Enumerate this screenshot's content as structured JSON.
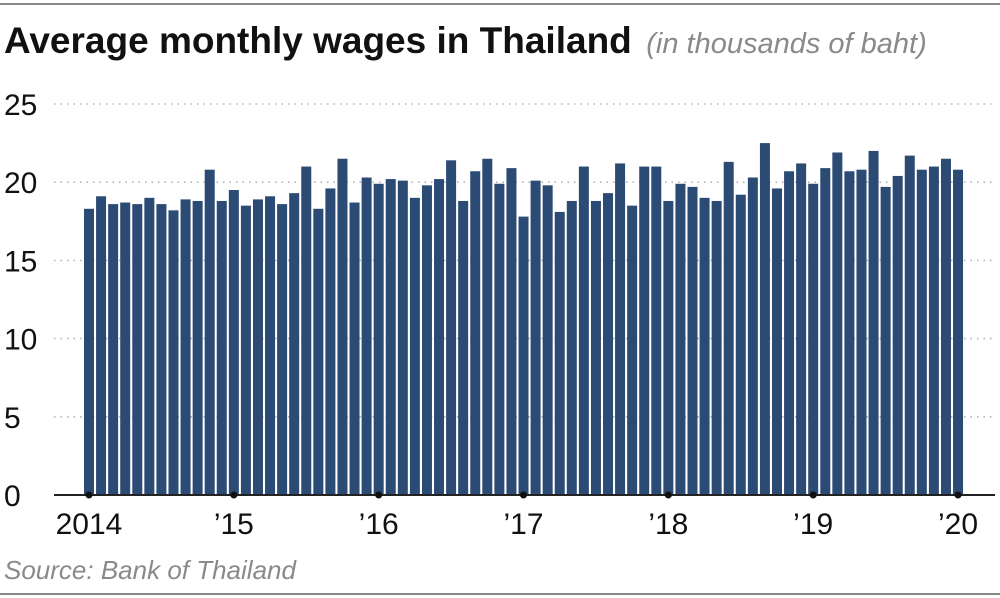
{
  "chart_data": {
    "type": "bar",
    "title": "Average monthly wages in Thailand",
    "subtitle": "(in thousands of baht)",
    "source": "Source: Bank of Thailand",
    "ylim": [
      0,
      25
    ],
    "yticks": [
      0,
      5,
      10,
      15,
      20,
      25
    ],
    "grid": "horizontal dotted",
    "bar_color": "#2b4a74",
    "x_tick_labels": [
      {
        "label": "2014",
        "index": 0
      },
      {
        "label": "’15",
        "index": 12
      },
      {
        "label": "’16",
        "index": 24
      },
      {
        "label": "’17",
        "index": 36
      },
      {
        "label": "’18",
        "index": 48
      },
      {
        "label": "’19",
        "index": 60
      },
      {
        "label": "’20",
        "index": 72
      }
    ],
    "categories": [
      "2014-01",
      "2014-02",
      "2014-03",
      "2014-04",
      "2014-05",
      "2014-06",
      "2014-07",
      "2014-08",
      "2014-09",
      "2014-10",
      "2014-11",
      "2014-12",
      "2015-01",
      "2015-02",
      "2015-03",
      "2015-04",
      "2015-05",
      "2015-06",
      "2015-07",
      "2015-08",
      "2015-09",
      "2015-10",
      "2015-11",
      "2015-12",
      "2016-01",
      "2016-02",
      "2016-03",
      "2016-04",
      "2016-05",
      "2016-06",
      "2016-07",
      "2016-08",
      "2016-09",
      "2016-10",
      "2016-11",
      "2016-12",
      "2017-01",
      "2017-02",
      "2017-03",
      "2017-04",
      "2017-05",
      "2017-06",
      "2017-07",
      "2017-08",
      "2017-09",
      "2017-10",
      "2017-11",
      "2017-12",
      "2018-01",
      "2018-02",
      "2018-03",
      "2018-04",
      "2018-05",
      "2018-06",
      "2018-07",
      "2018-08",
      "2018-09",
      "2018-10",
      "2018-11",
      "2018-12",
      "2019-01",
      "2019-02",
      "2019-03",
      "2019-04",
      "2019-05",
      "2019-06",
      "2019-07",
      "2019-08",
      "2019-09",
      "2019-10",
      "2019-11",
      "2019-12",
      "2020-01"
    ],
    "values": [
      18.3,
      19.1,
      18.6,
      18.7,
      18.6,
      19.0,
      18.6,
      18.2,
      18.9,
      18.8,
      20.8,
      18.8,
      19.5,
      18.5,
      18.9,
      19.1,
      18.6,
      19.3,
      21.0,
      18.3,
      19.6,
      21.5,
      18.7,
      20.3,
      19.9,
      20.2,
      20.1,
      19.0,
      19.8,
      20.2,
      21.4,
      18.8,
      20.7,
      21.5,
      19.9,
      20.9,
      17.8,
      20.1,
      19.8,
      18.1,
      18.8,
      21.0,
      18.8,
      19.3,
      21.2,
      18.5,
      21.0,
      21.0,
      18.8,
      19.9,
      19.7,
      19.0,
      18.8,
      21.3,
      19.2,
      20.3,
      22.5,
      19.6,
      20.7,
      21.2,
      19.9,
      20.9,
      21.9,
      20.7,
      20.8,
      22.0,
      19.7,
      20.4,
      21.7,
      20.8,
      21.0,
      21.5,
      20.8
    ]
  }
}
